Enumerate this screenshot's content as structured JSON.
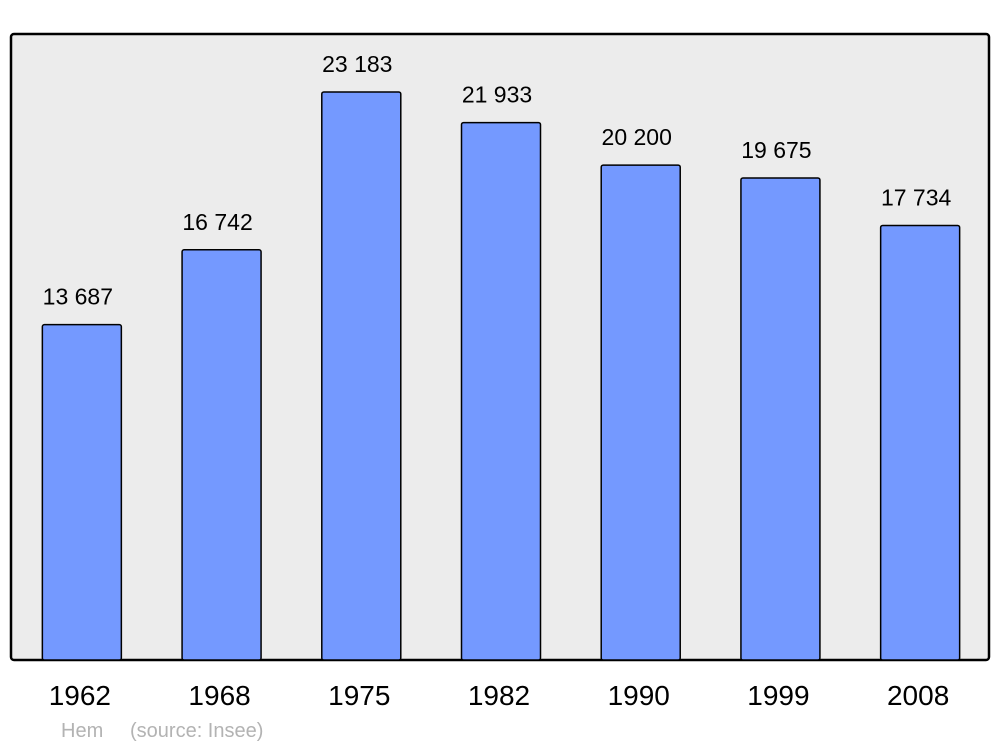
{
  "chart_data": {
    "type": "bar",
    "categories": [
      "1962",
      "1968",
      "1975",
      "1982",
      "1990",
      "1999",
      "2008"
    ],
    "values": [
      13687,
      16742,
      23183,
      21933,
      20200,
      19675,
      17734
    ],
    "data_labels": [
      "13 687",
      "16 742",
      "23 183",
      "21 933",
      "20 200",
      "19 675",
      "17 734"
    ],
    "title": "",
    "xlabel": "",
    "ylabel": "",
    "ylim": [
      0,
      25550
    ],
    "grid": false,
    "bar_color": "#7499ff",
    "background_color": "#ececec"
  },
  "footer": {
    "place": "Hem",
    "source": "(source: Insee)"
  }
}
